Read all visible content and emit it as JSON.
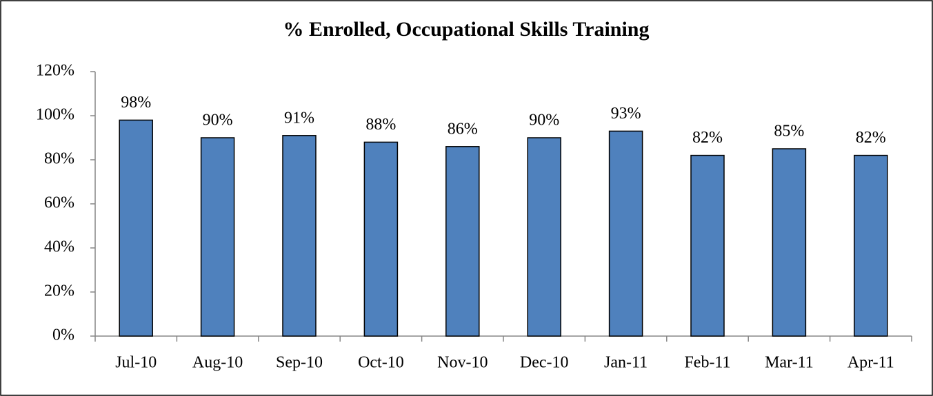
{
  "chart_data": {
    "type": "bar",
    "title": "% Enrolled, Occupational Skills Training",
    "categories": [
      "Jul-10",
      "Aug-10",
      "Sep-10",
      "Oct-10",
      "Nov-10",
      "Dec-10",
      "Jan-11",
      "Feb-11",
      "Mar-11",
      "Apr-11"
    ],
    "values": [
      98,
      90,
      91,
      88,
      86,
      90,
      93,
      82,
      85,
      82
    ],
    "value_labels": [
      "98%",
      "90%",
      "91%",
      "88%",
      "86%",
      "90%",
      "93%",
      "82%",
      "85%",
      "82%"
    ],
    "color": "#4f81bd",
    "ylim": [
      0,
      120
    ],
    "yticks": [
      {
        "value": 0,
        "label": "0%"
      },
      {
        "value": 20,
        "label": "20%"
      },
      {
        "value": 40,
        "label": "40%"
      },
      {
        "value": 60,
        "label": "60%"
      },
      {
        "value": 80,
        "label": "80%"
      },
      {
        "value": 100,
        "label": "100%"
      },
      {
        "value": 120,
        "label": "120%"
      }
    ],
    "grid": false
  }
}
